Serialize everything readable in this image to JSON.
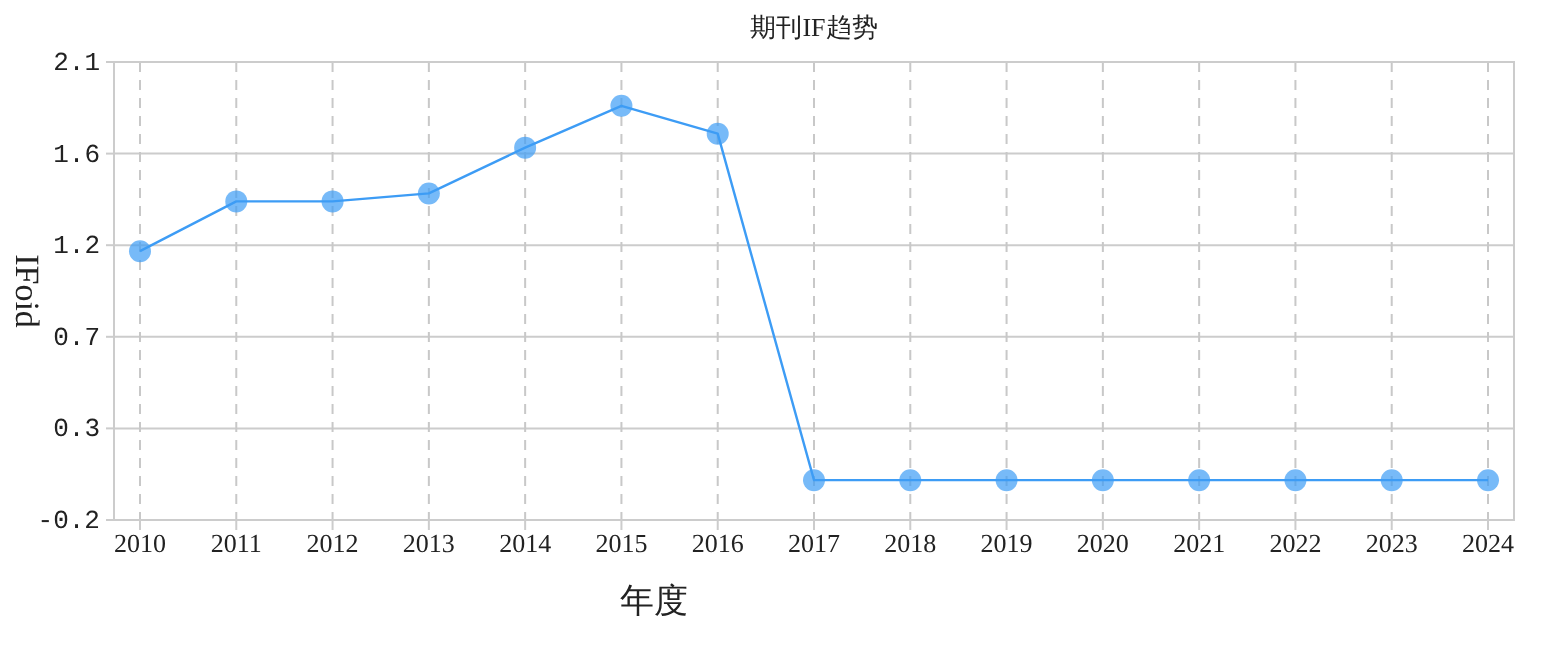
{
  "chart_data": {
    "type": "line",
    "title": "期刊IF趋势",
    "xlabel": "年度",
    "ylabel": "IFoid",
    "categories": [
      "2010",
      "2011",
      "2012",
      "2013",
      "2014",
      "2015",
      "2016",
      "2017",
      "2018",
      "2019",
      "2020",
      "2021",
      "2022",
      "2023",
      "2024"
    ],
    "series": [
      {
        "color": "#3d9cf5",
        "values": [
          1.15,
          1.4,
          1.4,
          1.44,
          1.67,
          1.88,
          1.74,
          0,
          0,
          0,
          0,
          0,
          0,
          0,
          0
        ]
      }
    ],
    "ylim": [
      -0.2,
      2.1
    ],
    "yticks": [
      {
        "value": -0.2,
        "label": "-0.2"
      },
      {
        "value": 0.26,
        "label": "0.3"
      },
      {
        "value": 0.72,
        "label": "0.7"
      },
      {
        "value": 1.18,
        "label": "1.2"
      },
      {
        "value": 1.64,
        "label": "1.6"
      },
      {
        "value": 2.1,
        "label": "2.1"
      }
    ],
    "grid": true,
    "marker": "circle",
    "line_style": "solid"
  }
}
